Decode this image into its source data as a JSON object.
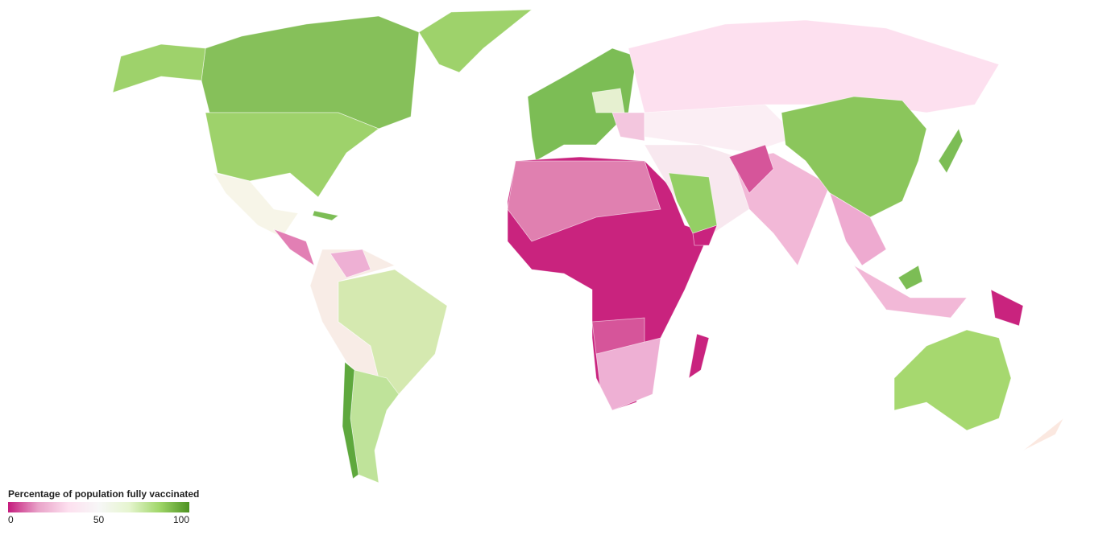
{
  "legend": {
    "title": "Percentage of population fully vaccinated",
    "range": [
      0,
      100
    ],
    "ticks": [
      0,
      50,
      100
    ],
    "colors": [
      "#c51b7d",
      "#e9a3c9",
      "#fde0ef",
      "#f7f7f7",
      "#e6f5d0",
      "#a1d76a",
      "#4d9221"
    ]
  }
}
